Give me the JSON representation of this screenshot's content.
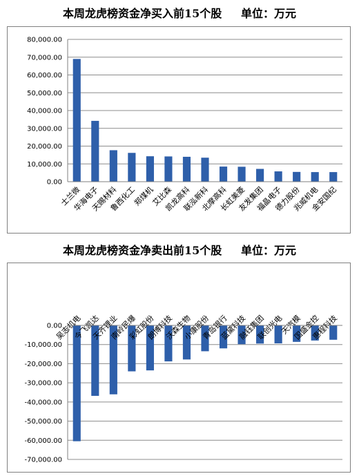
{
  "charts": [
    {
      "title": "本周龙虎榜资金净买入前15个股     单位：万元"
    },
    {
      "title": "本周龙虎榜资金净卖出前15个股     单位：万元"
    }
  ],
  "chart_data": [
    {
      "type": "bar",
      "title": "本周龙虎榜资金净买入前15个股     单位：万元",
      "categories": [
        "士兰微",
        "华海电子",
        "天赐材料",
        "鲁西化工",
        "郑煤机",
        "艾比森",
        "凯龙高科",
        "联泓新科",
        "北摩高科",
        "长虹美菱",
        "友发集团",
        "福晶电子",
        "德力股份",
        "兆威机电",
        "金安国纪"
      ],
      "values": [
        69000,
        34200,
        17700,
        16200,
        14300,
        14200,
        14000,
        13500,
        8500,
        8400,
        7200,
        5800,
        5500,
        5400,
        5400
      ],
      "ylim": [
        0,
        80000
      ],
      "yticks": [
        "0.00",
        "10,000.00",
        "20,000.00",
        "30,000.00",
        "40,000.00",
        "50,000.00",
        "60,000.00",
        "70,000.00",
        "80,000.00"
      ],
      "color": "#2e5faa",
      "grid": true
    },
    {
      "type": "bar",
      "title": "本周龙虎榜资金净卖出前15个股     单位：万元",
      "categories": [
        "吴志机电",
        "今飞凯达",
        "天齐锂业",
        "南岭民爆",
        "彩虹股份",
        "朗博科技",
        "沃森生物",
        "小康股份",
        "青岛银行",
        "蓝黛科技",
        "融钰集团",
        "联创光电",
        "天汽模",
        "国盛金控",
        "惠程科技"
      ],
      "values": [
        -60500,
        -36800,
        -36000,
        -24000,
        -23500,
        -18800,
        -17800,
        -13500,
        -12000,
        -9800,
        -9500,
        -9400,
        -8600,
        -7900,
        -7500
      ],
      "ylim": [
        -70000,
        0
      ],
      "yticks": [
        "0.00",
        "-10,000.00",
        "-20,000.00",
        "-30,000.00",
        "-40,000.00",
        "-50,000.00",
        "-60,000.00",
        "-70,000.00"
      ],
      "color": "#2e5faa",
      "grid": true
    }
  ]
}
